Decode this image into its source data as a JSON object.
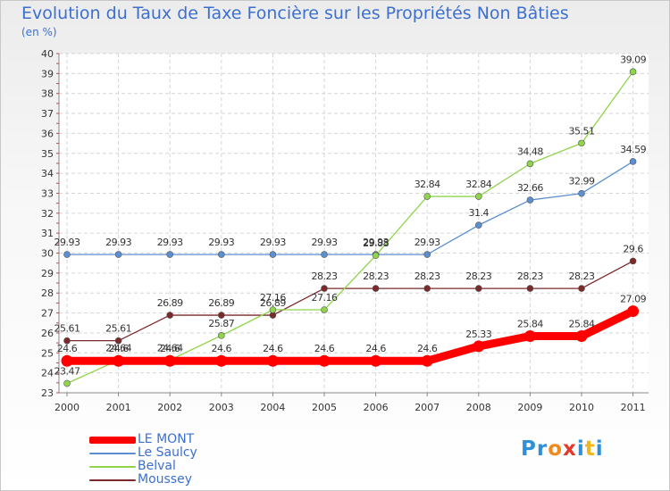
{
  "title": "Evolution du Taux de Taxe Foncière sur les Propriétés Non Bâties",
  "unit": "(en %)",
  "logo": {
    "text": "Proxiti",
    "colors": [
      "#2f8fd8",
      "#2f8fd8",
      "#f08a1c",
      "#e23a2a",
      "#2f8fd8",
      "#f0b81c",
      "#2f8fd8"
    ]
  },
  "chart_data": {
    "type": "line",
    "x": [
      "2000",
      "2001",
      "2002",
      "2003",
      "2004",
      "2005",
      "2006",
      "2007",
      "2008",
      "2009",
      "2010",
      "2011"
    ],
    "ylim": [
      23,
      40
    ],
    "yticks": [
      23,
      24,
      25,
      26,
      27,
      28,
      29,
      30,
      31,
      32,
      33,
      34,
      35,
      36,
      37,
      38,
      39,
      40
    ],
    "grid": true,
    "legend": "bottom-left",
    "series": [
      {
        "name": "LE MONT",
        "color": "#ff0000",
        "values": [
          24.6,
          24.6,
          24.6,
          24.6,
          24.6,
          24.6,
          24.6,
          24.6,
          25.33,
          25.84,
          25.84,
          27.09
        ],
        "labels": [
          "24.6",
          "24.6",
          "24.6",
          "24.6",
          "24.6",
          "24.6",
          "24.6",
          "24.6",
          "25.33",
          "25.84",
          "25.84",
          "27.09"
        ]
      },
      {
        "name": "Le Saulcy",
        "color": "#5b8fd0",
        "values": [
          29.93,
          29.93,
          29.93,
          29.93,
          29.93,
          29.93,
          29.93,
          29.93,
          31.4,
          32.66,
          32.99,
          34.59
        ],
        "labels": [
          "29.93",
          "29.93",
          "29.93",
          "29.93",
          "29.93",
          "29.93",
          "29.93",
          "29.93",
          "31.4",
          "32.66",
          "32.99",
          "34.59"
        ]
      },
      {
        "name": "Belval",
        "color": "#8fd44a",
        "values": [
          23.47,
          24.64,
          24.64,
          25.87,
          27.16,
          27.16,
          29.88,
          32.84,
          32.84,
          34.48,
          35.51,
          39.09
        ],
        "labels": [
          "23.47",
          "24.64",
          "24.64",
          "25.87",
          "27.16",
          "27.16",
          "29.88",
          "32.84",
          "32.84",
          "34.48",
          "35.51",
          "39.09"
        ]
      },
      {
        "name": "Moussey",
        "color": "#7a2a2a",
        "values": [
          25.61,
          25.61,
          26.89,
          26.89,
          26.89,
          28.23,
          28.23,
          28.23,
          28.23,
          28.23,
          28.23,
          29.6
        ],
        "labels": [
          "25.61",
          "25.61",
          "26.89",
          "26.89",
          "26.89",
          "28.23",
          "28.23",
          "28.23",
          "28.23",
          "28.23",
          "28.23",
          "29.6"
        ]
      }
    ]
  }
}
